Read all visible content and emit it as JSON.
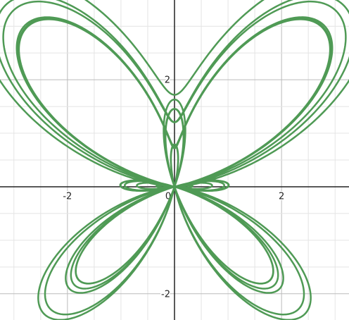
{
  "chart_data": {
    "type": "polar-butterfly",
    "color": "#4f9a55",
    "xlim": [
      -3.26,
      3.26
    ],
    "ylim": [
      -2.49,
      3.49
    ],
    "xticks": [
      -2,
      0,
      2
    ],
    "yticks": [
      -2,
      2
    ],
    "xgrid": [
      -3,
      -2.5,
      -2,
      -1.5,
      -1,
      -0.5,
      0.5,
      1,
      1.5,
      2,
      2.5,
      3
    ],
    "ygrid": [
      -2,
      -1.5,
      -1,
      -0.5,
      0.5,
      1,
      1.5,
      2,
      2.5,
      3
    ],
    "theta": [
      0,
      37.7
    ],
    "grid": true
  }
}
